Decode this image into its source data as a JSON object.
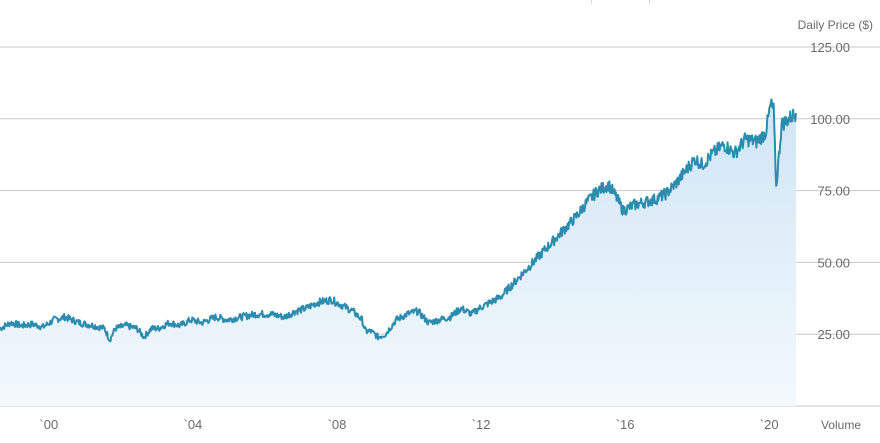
{
  "chart_data": {
    "type": "area",
    "title": "",
    "xlabel": "",
    "ylabel": "Daily Price ($)",
    "lower_panel_label": "Volume",
    "xlim": [
      1998.7,
      2020.8
    ],
    "ylim": [
      0,
      125
    ],
    "yticks": [
      {
        "value": 125,
        "label": "125.00"
      },
      {
        "value": 100,
        "label": "100.00"
      },
      {
        "value": 75,
        "label": "75.00"
      },
      {
        "value": 50,
        "label": "50.00"
      },
      {
        "value": 25,
        "label": "25.00"
      }
    ],
    "xticks": [
      {
        "value": 2000,
        "label": "`00"
      },
      {
        "value": 2004,
        "label": "`04"
      },
      {
        "value": 2008,
        "label": "`08"
      },
      {
        "value": 2012,
        "label": "`12"
      },
      {
        "value": 2016,
        "label": "`16"
      },
      {
        "value": 2020,
        "label": "`20"
      }
    ],
    "grid": "horizontal",
    "series": [
      {
        "x": [
          1998.7,
          1999.0,
          1999.3,
          1999.6,
          1999.9,
          2000.2,
          2000.5,
          2000.9,
          2001.3,
          2001.6,
          2001.75,
          2001.9,
          2002.2,
          2002.5,
          2002.7,
          2002.9,
          2003.1,
          2003.4,
          2003.7,
          2004.0,
          2004.3,
          2004.7,
          2005.0,
          2005.4,
          2005.8,
          2006.2,
          2006.6,
          2006.9,
          2007.2,
          2007.5,
          2007.9,
          2008.2,
          2008.5,
          2008.75,
          2008.85,
          2009.0,
          2009.2,
          2009.4,
          2009.7,
          2010.0,
          2010.3,
          2010.6,
          2010.9,
          2011.2,
          2011.5,
          2011.8,
          2012.0,
          2012.3,
          2012.6,
          2012.9,
          2013.2,
          2013.5,
          2013.8,
          2014.1,
          2014.4,
          2014.7,
          2015.0,
          2015.3,
          2015.6,
          2015.8,
          2016.0,
          2016.3,
          2016.6,
          2016.9,
          2017.2,
          2017.5,
          2017.8,
          2018.0,
          2018.2,
          2018.5,
          2018.8,
          2019.1,
          2019.4,
          2019.7,
          2019.95,
          2020.1,
          2020.18,
          2020.25,
          2020.4,
          2020.6,
          2020.8
        ],
        "y": [
          27,
          29,
          28,
          28.5,
          27.5,
          30,
          31,
          29,
          28,
          27,
          23,
          27,
          28,
          27,
          24,
          27,
          27,
          29,
          28,
          30,
          29,
          31,
          30,
          31,
          32,
          32,
          31,
          33,
          34,
          36,
          37,
          35,
          33,
          30,
          26,
          26,
          24,
          25,
          30,
          32,
          33,
          29,
          30,
          31,
          34,
          32,
          34,
          36,
          38,
          42,
          46,
          50,
          54,
          58,
          62,
          66,
          71,
          75,
          77,
          73,
          68,
          70,
          71,
          72,
          74,
          78,
          83,
          86,
          84,
          88,
          91,
          88,
          93,
          92,
          95,
          105,
          103,
          76,
          98,
          100,
          102
        ]
      }
    ],
    "colors": {
      "line": "#2b8cae",
      "area_top": "#cfe5f5",
      "area_bottom": "#f4f9fd",
      "grid": "#c9c9c9",
      "text": "#6b6b6b"
    }
  }
}
